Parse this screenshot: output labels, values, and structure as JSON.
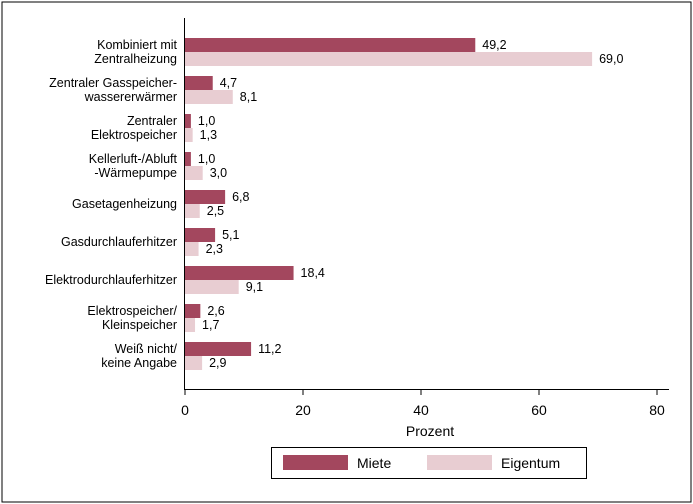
{
  "chart_data": {
    "type": "bar",
    "orientation": "horizontal",
    "categories": [
      [
        "Kombiniert mit",
        "Zentralheizung"
      ],
      [
        "Zentraler Gasspeicher-",
        "wassererwärmer"
      ],
      [
        "Zentraler",
        "Elektrospeicher"
      ],
      [
        "Kellerluft-/Abluft",
        "-Wärmepumpe"
      ],
      [
        "Gasetagenheizung"
      ],
      [
        "Gasdurchlauferhitzer"
      ],
      [
        "Elektrodurchlauferhitzer"
      ],
      [
        "Elektrospeicher/",
        "Kleinspeicher"
      ],
      [
        "Weiß nicht/",
        "keine Angabe"
      ]
    ],
    "series": [
      {
        "name": "Miete",
        "color": "#a3475e",
        "values": [
          49.2,
          4.7,
          1.0,
          1.0,
          6.8,
          5.1,
          18.4,
          2.6,
          11.2
        ],
        "labels": [
          "49,2",
          "4,7",
          "1,0",
          "1,0",
          "6,8",
          "5,1",
          "18,4",
          "2,6",
          "11,2"
        ]
      },
      {
        "name": "Eigentum",
        "color": "#e8cdd2",
        "values": [
          69.0,
          8.1,
          1.3,
          3.0,
          2.5,
          2.3,
          9.1,
          1.7,
          2.9
        ],
        "labels": [
          "69,0",
          "8,1",
          "1,3",
          "3,0",
          "2,5",
          "2,3",
          "9,1",
          "1,7",
          "2,9"
        ]
      }
    ],
    "xlabel": "Prozent",
    "xlim": [
      0,
      80
    ],
    "xticks": [
      0,
      20,
      40,
      60,
      80
    ],
    "xtick_labels": [
      "0",
      "20",
      "40",
      "60",
      "80"
    ],
    "grid": false,
    "legend_position": "bottom"
  }
}
